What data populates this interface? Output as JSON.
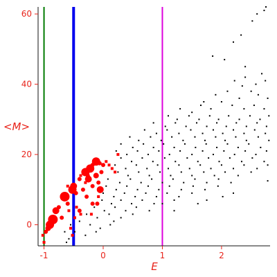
{
  "chart_data": {
    "type": "scatter",
    "title": "",
    "xlabel": "E",
    "ylabel": "<M>",
    "xlim": [
      -1.1,
      2.82
    ],
    "ylim": [
      -6,
      62
    ],
    "grid": false,
    "legend": "none",
    "x_ticks": [
      -1,
      0,
      1,
      2
    ],
    "x_tick_labels": [
      "-1",
      "0",
      "1",
      "2"
    ],
    "y_ticks": [
      0,
      20,
      40,
      60
    ],
    "y_tick_labels": [
      "0",
      "20",
      "40",
      "60"
    ],
    "colors": {
      "axis_text": "#e8231a",
      "black_points": "#000000",
      "red_points": "#ff0000",
      "line_green": "#007a00",
      "line_blue": "#0000ee",
      "line_magenta": "#dd00dd"
    },
    "vertical_lines": [
      {
        "x": -1.0,
        "color": "#007a00",
        "weight": "thin"
      },
      {
        "x": -0.5,
        "color": "#0000ee",
        "weight": "thick"
      },
      {
        "x": 1.0,
        "color": "#dd00dd",
        "weight": "thin"
      }
    ],
    "series": [
      {
        "marker": "small black dots",
        "points": [
          [
            2.72,
            61
          ],
          [
            2.75,
            62
          ],
          [
            2.52,
            58
          ],
          [
            2.6,
            60
          ],
          [
            2.33,
            54
          ],
          [
            2.2,
            52
          ],
          [
            1.85,
            48
          ],
          [
            2.05,
            47
          ],
          [
            2.4,
            45
          ],
          [
            2.68,
            43
          ],
          [
            2.4,
            42
          ],
          [
            2.22,
            41
          ],
          [
            2.58,
            40
          ],
          [
            2.35,
            39.5
          ],
          [
            2.74,
            41
          ],
          [
            1.7,
            35
          ],
          [
            1.9,
            37
          ],
          [
            2.1,
            38
          ],
          [
            2.3,
            36
          ],
          [
            2.5,
            38
          ],
          [
            2.62,
            37
          ],
          [
            2.78,
            36
          ],
          [
            1.3,
            33
          ],
          [
            1.5,
            32
          ],
          [
            1.65,
            34
          ],
          [
            1.82,
            33
          ],
          [
            2.0,
            35
          ],
          [
            2.18,
            34
          ],
          [
            2.38,
            33
          ],
          [
            2.55,
            34
          ],
          [
            2.72,
            33
          ],
          [
            1.1,
            31
          ],
          [
            1.25,
            30
          ],
          [
            1.45,
            31
          ],
          [
            1.62,
            30
          ],
          [
            1.8,
            31
          ],
          [
            1.95,
            30
          ],
          [
            2.12,
            31
          ],
          [
            2.3,
            30
          ],
          [
            2.48,
            31
          ],
          [
            2.65,
            30
          ],
          [
            2.8,
            31
          ],
          [
            0.85,
            29
          ],
          [
            1.05,
            28
          ],
          [
            1.22,
            29
          ],
          [
            1.4,
            28
          ],
          [
            1.58,
            29
          ],
          [
            1.75,
            28
          ],
          [
            1.92,
            29
          ],
          [
            2.08,
            28
          ],
          [
            2.25,
            29
          ],
          [
            2.42,
            28
          ],
          [
            2.6,
            29
          ],
          [
            2.76,
            28
          ],
          [
            0.7,
            27
          ],
          [
            0.9,
            26
          ],
          [
            1.08,
            27
          ],
          [
            1.28,
            26
          ],
          [
            1.48,
            27
          ],
          [
            1.68,
            26
          ],
          [
            1.86,
            27
          ],
          [
            2.02,
            26
          ],
          [
            2.2,
            27
          ],
          [
            2.38,
            26
          ],
          [
            2.56,
            27
          ],
          [
            2.74,
            26
          ],
          [
            0.45,
            25
          ],
          [
            0.6,
            24
          ],
          [
            0.8,
            25
          ],
          [
            0.98,
            24
          ],
          [
            1.16,
            25
          ],
          [
            1.35,
            24
          ],
          [
            1.55,
            25
          ],
          [
            1.72,
            24
          ],
          [
            1.9,
            25
          ],
          [
            2.06,
            24
          ],
          [
            2.24,
            25
          ],
          [
            2.42,
            24
          ],
          [
            2.62,
            25
          ],
          [
            2.8,
            24
          ],
          [
            0.3,
            23
          ],
          [
            0.5,
            22
          ],
          [
            0.68,
            23
          ],
          [
            0.85,
            22
          ],
          [
            1.02,
            23
          ],
          [
            1.2,
            22
          ],
          [
            1.38,
            23
          ],
          [
            1.56,
            22
          ],
          [
            1.74,
            23
          ],
          [
            1.92,
            22
          ],
          [
            2.1,
            23
          ],
          [
            2.28,
            22
          ],
          [
            2.46,
            23
          ],
          [
            2.66,
            22
          ],
          [
            0.22,
            21
          ],
          [
            0.4,
            20
          ],
          [
            0.58,
            21
          ],
          [
            0.76,
            20
          ],
          [
            0.94,
            21
          ],
          [
            1.12,
            20
          ],
          [
            1.3,
            21
          ],
          [
            1.5,
            20
          ],
          [
            1.68,
            21
          ],
          [
            1.86,
            20
          ],
          [
            2.04,
            21
          ],
          [
            2.22,
            20
          ],
          [
            2.4,
            21
          ],
          [
            2.58,
            20
          ],
          [
            2.76,
            21
          ],
          [
            0.3,
            19
          ],
          [
            0.48,
            18
          ],
          [
            0.66,
            19
          ],
          [
            0.84,
            18
          ],
          [
            1.04,
            19
          ],
          [
            1.22,
            18
          ],
          [
            1.42,
            19
          ],
          [
            1.6,
            18
          ],
          [
            1.78,
            19
          ],
          [
            1.96,
            18
          ],
          [
            2.14,
            19
          ],
          [
            2.34,
            18
          ],
          [
            2.52,
            19
          ],
          [
            2.72,
            18
          ],
          [
            0.2,
            17
          ],
          [
            0.38,
            16
          ],
          [
            0.56,
            17
          ],
          [
            0.74,
            16
          ],
          [
            0.92,
            17
          ],
          [
            1.1,
            16
          ],
          [
            1.28,
            17
          ],
          [
            1.46,
            16
          ],
          [
            1.64,
            17
          ],
          [
            1.82,
            16
          ],
          [
            2.0,
            17
          ],
          [
            2.2,
            16
          ],
          [
            2.38,
            17
          ],
          [
            2.6,
            16
          ],
          [
            2.78,
            17
          ],
          [
            0.25,
            15
          ],
          [
            0.42,
            14
          ],
          [
            0.6,
            15
          ],
          [
            0.78,
            14
          ],
          [
            0.96,
            15
          ],
          [
            1.14,
            14
          ],
          [
            1.32,
            15
          ],
          [
            1.5,
            14
          ],
          [
            1.7,
            15
          ],
          [
            1.88,
            14
          ],
          [
            2.06,
            15
          ],
          [
            2.28,
            14
          ],
          [
            2.5,
            15
          ],
          [
            0.08,
            13
          ],
          [
            0.28,
            12
          ],
          [
            0.46,
            13
          ],
          [
            0.64,
            12
          ],
          [
            0.82,
            13
          ],
          [
            1.0,
            12
          ],
          [
            1.18,
            13
          ],
          [
            1.36,
            12
          ],
          [
            1.55,
            13
          ],
          [
            1.75,
            12
          ],
          [
            1.95,
            13
          ],
          [
            2.16,
            12
          ],
          [
            2.78,
            12.5
          ],
          [
            0.05,
            11
          ],
          [
            0.22,
            10
          ],
          [
            0.4,
            11
          ],
          [
            0.58,
            10
          ],
          [
            0.76,
            11
          ],
          [
            0.94,
            10
          ],
          [
            1.12,
            11
          ],
          [
            1.32,
            10
          ],
          [
            1.52,
            11
          ],
          [
            1.72,
            10
          ],
          [
            1.94,
            11
          ],
          [
            2.2,
            9
          ],
          [
            0.0,
            9
          ],
          [
            0.18,
            8
          ],
          [
            0.36,
            9
          ],
          [
            0.54,
            8
          ],
          [
            0.72,
            9
          ],
          [
            0.9,
            8
          ],
          [
            1.08,
            9
          ],
          [
            1.28,
            8
          ],
          [
            1.5,
            9
          ],
          [
            1.75,
            7
          ],
          [
            2.02,
            8
          ],
          [
            -0.02,
            7
          ],
          [
            0.14,
            6
          ],
          [
            0.3,
            7
          ],
          [
            0.48,
            6
          ],
          [
            0.66,
            7
          ],
          [
            0.86,
            6
          ],
          [
            1.2,
            7
          ],
          [
            1.6,
            6
          ],
          [
            1.2,
            4
          ],
          [
            -0.15,
            5
          ],
          [
            0.02,
            4
          ],
          [
            0.2,
            5
          ],
          [
            0.38,
            4
          ],
          [
            0.56,
            5
          ],
          [
            0.78,
            4
          ],
          [
            1.0,
            6
          ],
          [
            -0.28,
            3
          ],
          [
            -0.1,
            2
          ],
          [
            0.1,
            3
          ],
          [
            0.3,
            2
          ],
          [
            0.5,
            3
          ],
          [
            0.12,
            0
          ],
          [
            -0.4,
            1
          ],
          [
            -0.22,
            0
          ],
          [
            -0.05,
            -1
          ],
          [
            0.18,
            1
          ],
          [
            -0.48,
            -2
          ],
          [
            -0.3,
            -3
          ],
          [
            -0.12,
            -2
          ],
          [
            -0.58,
            -4
          ],
          [
            -0.65,
            -2
          ],
          [
            -0.55,
            0
          ],
          [
            -0.62,
            -5
          ]
        ]
      },
      {
        "marker": "red markers of varying size",
        "points": [
          [
            -1.02,
            -3,
            2
          ],
          [
            -1.0,
            -5,
            2
          ],
          [
            -0.97,
            -2,
            3
          ],
          [
            -0.93,
            -1,
            4
          ],
          [
            -0.9,
            0,
            6
          ],
          [
            -0.85,
            1.5,
            7
          ],
          [
            -0.8,
            4,
            5
          ],
          [
            -0.75,
            5,
            3
          ],
          [
            -0.7,
            2,
            3
          ],
          [
            -0.65,
            8,
            7
          ],
          [
            -0.6,
            6,
            3
          ],
          [
            -0.58,
            4,
            2
          ],
          [
            -0.52,
            10,
            6
          ],
          [
            -0.5,
            11,
            5
          ],
          [
            -0.46,
            9,
            3
          ],
          [
            -0.4,
            13,
            3
          ],
          [
            -0.38,
            14,
            2
          ],
          [
            -0.3,
            15,
            6
          ],
          [
            -0.26,
            14,
            3
          ],
          [
            -0.22,
            16,
            6
          ],
          [
            -0.18,
            17,
            3
          ],
          [
            -0.12,
            18,
            6
          ],
          [
            -0.06,
            17.5,
            3
          ],
          [
            0.0,
            17,
            3
          ],
          [
            0.05,
            18,
            2
          ],
          [
            0.1,
            17,
            2
          ],
          [
            0.15,
            16,
            2
          ],
          [
            0.2,
            15,
            2
          ],
          [
            0.25,
            20,
            2
          ],
          [
            -0.4,
            4,
            3
          ],
          [
            -0.34,
            10,
            3
          ],
          [
            -0.28,
            8,
            3
          ],
          [
            -0.25,
            13,
            5
          ],
          [
            -0.18,
            11,
            3
          ],
          [
            -0.12,
            14,
            4
          ],
          [
            -0.08,
            12,
            3
          ],
          [
            -0.05,
            10,
            5
          ],
          [
            -0.03,
            15,
            3
          ],
          [
            -0.18,
            6,
            3
          ],
          [
            -0.2,
            3,
            2
          ],
          [
            -0.1,
            6,
            3
          ],
          [
            -0.55,
            -1,
            2
          ],
          [
            -0.48,
            2,
            2
          ],
          [
            -0.52,
            -3,
            2
          ],
          [
            -0.3,
            12,
            2
          ],
          [
            -0.6,
            11,
            2
          ],
          [
            -0.45,
            5,
            2
          ],
          [
            -0.38,
            3,
            2
          ],
          [
            -0.08,
            8,
            2
          ]
        ]
      }
    ]
  }
}
